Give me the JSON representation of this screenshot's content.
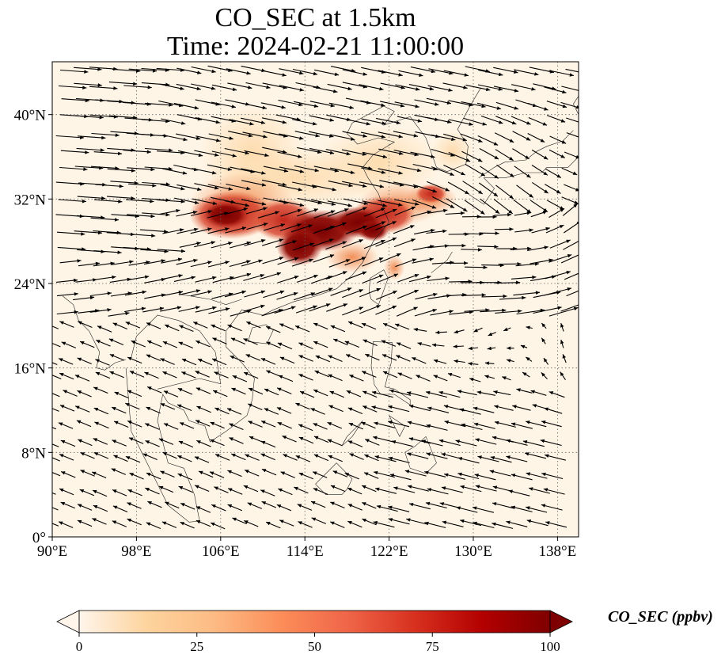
{
  "title": {
    "line1": "CO_SEC at 1.5km",
    "line2": "Time: 2024-02-21 11:00:00"
  },
  "map": {
    "lon_range": [
      90,
      140
    ],
    "lat_range": [
      0,
      45
    ],
    "lon_ticks": [
      {
        "value": 90,
        "label": "90°E"
      },
      {
        "value": 98,
        "label": "98°E"
      },
      {
        "value": 106,
        "label": "106°E"
      },
      {
        "value": 114,
        "label": "114°E"
      },
      {
        "value": 122,
        "label": "122°E"
      },
      {
        "value": 130,
        "label": "130°E"
      },
      {
        "value": 138,
        "label": "138°E"
      }
    ],
    "lat_ticks": [
      {
        "value": 0,
        "label": "0°"
      },
      {
        "value": 8,
        "label": "8°N"
      },
      {
        "value": 16,
        "label": "16°N"
      },
      {
        "value": 24,
        "label": "24°N"
      },
      {
        "value": 32,
        "label": "32°N"
      },
      {
        "value": 40,
        "label": "40°N"
      }
    ],
    "gridlines": "dotted",
    "background_color": "#fff5e6",
    "plume_colors": [
      "#fdd9a8",
      "#f3a46a",
      "#d9482e",
      "#8b0000"
    ]
  },
  "colorbar": {
    "label": "CO_SEC (ppbv)",
    "ticks": [
      0,
      25,
      50,
      75,
      100
    ],
    "extend": "both",
    "colormap": [
      "#fff5eb",
      "#fdd49e",
      "#fdbb84",
      "#fc8d59",
      "#ef6548",
      "#d7301f",
      "#b30000",
      "#7f0000"
    ]
  }
}
